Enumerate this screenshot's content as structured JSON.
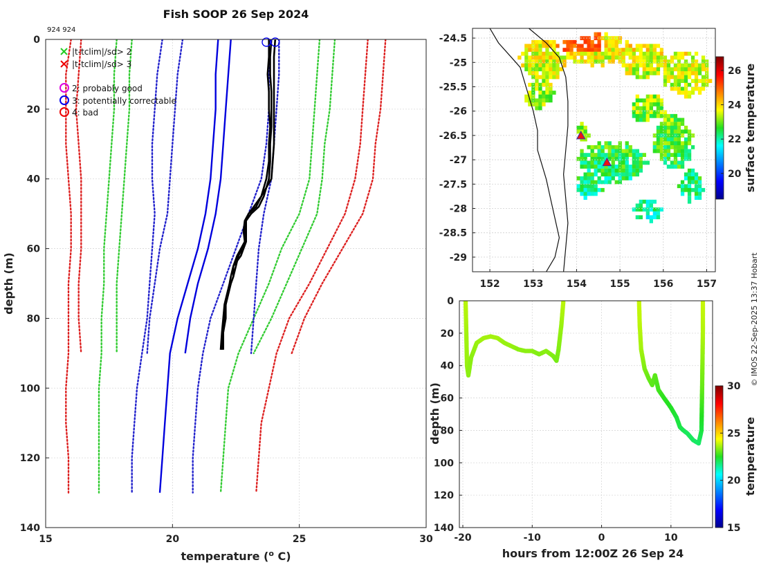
{
  "credit": "© IMOS 22-Sep-2025 13:37 Hobart",
  "chart_data": [
    {
      "id": "profile",
      "type": "line",
      "title": "Fish SOOP 26 Sep 2024",
      "subtitle": "924 924",
      "xlabel": "temperature (",
      "xlabel_sup": "o",
      "xlabel_end": " C)",
      "ylabel": "depth (m)",
      "xlim": [
        15,
        30
      ],
      "ylim": [
        0,
        140
      ],
      "xticks": [
        15,
        20,
        25,
        30
      ],
      "yticks": [
        0,
        20,
        40,
        60,
        80,
        100,
        120,
        140
      ],
      "legend": [
        {
          "marker": "x",
          "color": "#22cc22",
          "label": "|t-tclim|/sd> 2"
        },
        {
          "marker": "x",
          "color": "#ee0000",
          "label": "|t-tclim|/sd> 3"
        },
        {
          "marker": "o",
          "color": "#dd00dd",
          "label": "2: probably good"
        },
        {
          "marker": "o",
          "color": "#0000ee",
          "label": "3: potentially correctable"
        },
        {
          "marker": "o",
          "color": "#ee0000",
          "label": "4: bad"
        }
      ],
      "clim_depths": [
        0,
        10,
        20,
        30,
        40,
        50,
        60,
        70,
        80,
        90,
        100,
        110,
        120,
        130
      ],
      "climatology": [
        {
          "name": "clim-3sd-low",
          "color": "#dd2222",
          "dash": true,
          "depth_max": 130,
          "values": [
            16.0,
            15.8,
            15.8,
            15.8,
            15.9,
            16.0,
            16.0,
            15.9,
            15.9,
            15.9,
            15.8,
            15.8,
            15.9,
            15.9
          ]
        },
        {
          "name": "clim-2sd-low",
          "color": "#33cc33",
          "dash": true,
          "depth_max": 130,
          "values": [
            17.8,
            17.7,
            17.7,
            17.6,
            17.5,
            17.4,
            17.3,
            17.3,
            17.2,
            17.2,
            17.1,
            17.1,
            17.1,
            17.1
          ]
        },
        {
          "name": "clim-1sd-low",
          "color": "#2222cc",
          "dash": true,
          "depth_max": 130,
          "values": [
            19.6,
            19.4,
            19.3,
            19.2,
            19.2,
            19.3,
            19.2,
            19.1,
            19.0,
            18.8,
            18.6,
            18.5,
            18.4,
            18.4
          ]
        },
        {
          "name": "clim-mean",
          "color": "#0000dd",
          "dash": false,
          "depth_max": 130,
          "values": [
            21.8,
            21.7,
            21.7,
            21.6,
            21.5,
            21.3,
            21.0,
            20.6,
            20.2,
            19.9,
            19.8,
            19.7,
            19.6,
            19.5
          ]
        },
        {
          "name": "clim-1sd-high",
          "color": "#2222cc",
          "dash": true,
          "depth_max": 130,
          "values": [
            23.8,
            23.8,
            23.8,
            23.7,
            23.5,
            23.0,
            22.5,
            22.0,
            21.5,
            21.2,
            21.0,
            20.9,
            20.8,
            20.8
          ]
        },
        {
          "name": "clim-2sd-high",
          "color": "#33cc33",
          "dash": true,
          "depth_max": 130,
          "values": [
            25.8,
            25.7,
            25.6,
            25.5,
            25.4,
            25.0,
            24.3,
            23.8,
            23.2,
            22.6,
            22.2,
            22.1,
            22.0,
            21.9
          ]
        },
        {
          "name": "clim-3sd-high",
          "color": "#dd2222",
          "dash": true,
          "depth_max": 130,
          "values": [
            27.7,
            27.6,
            27.5,
            27.4,
            27.2,
            26.8,
            26.1,
            25.4,
            24.6,
            24.1,
            23.8,
            23.5,
            23.4,
            23.3
          ]
        }
      ],
      "clim_short_depths": [
        0,
        10,
        20,
        30,
        40,
        50,
        60,
        70,
        80,
        90
      ],
      "climatology_short": [
        {
          "name": "clim90-3sd-low",
          "color": "#dd2222",
          "dash": true,
          "values": [
            16.4,
            16.3,
            16.2,
            16.3,
            16.4,
            16.4,
            16.4,
            16.3,
            16.3,
            16.4
          ]
        },
        {
          "name": "clim90-2sd-low",
          "color": "#33cc33",
          "dash": true,
          "values": [
            18.4,
            18.3,
            18.3,
            18.2,
            18.1,
            18.0,
            17.9,
            17.8,
            17.8,
            17.8
          ]
        },
        {
          "name": "clim90-1sd-low",
          "color": "#2222cc",
          "dash": true,
          "values": [
            20.4,
            20.2,
            20.1,
            20.0,
            19.9,
            19.8,
            19.5,
            19.3,
            19.1,
            19.0
          ]
        },
        {
          "name": "clim90-mean",
          "color": "#0000dd",
          "dash": false,
          "values": [
            22.3,
            22.2,
            22.1,
            22.0,
            21.9,
            21.7,
            21.4,
            21.0,
            20.7,
            20.5
          ]
        },
        {
          "name": "clim90-1sd-high",
          "color": "#2222cc",
          "dash": true,
          "values": [
            24.2,
            24.2,
            24.1,
            24.0,
            23.9,
            23.6,
            23.4,
            23.3,
            23.2,
            23.1
          ]
        },
        {
          "name": "clim90-2sd-high",
          "color": "#33cc33",
          "dash": true,
          "values": [
            26.4,
            26.3,
            26.2,
            26.0,
            25.9,
            25.7,
            25.1,
            24.5,
            23.9,
            23.2
          ]
        },
        {
          "name": "clim90-3sd-high",
          "color": "#dd2222",
          "dash": true,
          "values": [
            28.4,
            28.3,
            28.2,
            28.0,
            27.9,
            27.5,
            26.7,
            25.9,
            25.2,
            24.7
          ]
        }
      ],
      "observed": {
        "depths": [
          0,
          5,
          10,
          15,
          20,
          25,
          30,
          35,
          40,
          45,
          48,
          50,
          52,
          55,
          58,
          60,
          62,
          65,
          68,
          70,
          73,
          76,
          80,
          84,
          89
        ],
        "profiles": [
          [
            23.9,
            23.85,
            23.85,
            23.9,
            23.9,
            23.9,
            23.85,
            23.85,
            23.8,
            23.6,
            23.4,
            23.1,
            22.9,
            22.9,
            22.9,
            22.8,
            22.7,
            22.4,
            22.4,
            22.3,
            22.2,
            22.1,
            22.1,
            22.0,
            22.0
          ],
          [
            24.05,
            24.0,
            24.0,
            24.0,
            24.0,
            24.0,
            24.0,
            23.95,
            23.9,
            23.5,
            23.2,
            23.0,
            22.9,
            22.85,
            22.85,
            22.75,
            22.6,
            22.5,
            22.4,
            22.3,
            22.2,
            22.1,
            22.05,
            22.0,
            21.95
          ],
          [
            23.8,
            23.8,
            23.75,
            23.8,
            23.8,
            23.85,
            23.8,
            23.8,
            23.7,
            23.5,
            23.3,
            23.0,
            22.85,
            22.8,
            22.85,
            22.7,
            22.55,
            22.4,
            22.3,
            22.25,
            22.15,
            22.05,
            22.0,
            21.95,
            21.9
          ]
        ],
        "flags_depth": [
          0,
          0
        ],
        "flags_temp": [
          23.7,
          24.05
        ]
      }
    },
    {
      "id": "sst-map",
      "type": "heatmap",
      "xlim": [
        151.6,
        157.2
      ],
      "ylim": [
        -29.3,
        -24.3
      ],
      "xticks": [
        152,
        153,
        154,
        155,
        156,
        157
      ],
      "yticks": [
        -24.5,
        -25,
        -25.5,
        -26,
        -26.5,
        -27,
        -27.5,
        -28,
        -28.5,
        -29
      ],
      "colorbar_label": "surface temperature",
      "clim": [
        18.5,
        26.8
      ],
      "colorbar_ticks": [
        20,
        22,
        24,
        26
      ],
      "markers": [
        {
          "lon": 154.1,
          "lat": -26.5
        },
        {
          "lon": 154.7,
          "lat": -27.05
        }
      ],
      "coast": [
        [
          152.0,
          -24.3
        ],
        [
          152.2,
          -24.6
        ],
        [
          152.5,
          -24.9
        ],
        [
          152.7,
          -25.1
        ],
        [
          152.8,
          -25.4
        ],
        [
          152.9,
          -25.7
        ],
        [
          153.0,
          -26.0
        ],
        [
          153.1,
          -26.4
        ],
        [
          153.1,
          -26.8
        ],
        [
          153.2,
          -27.1
        ],
        [
          153.3,
          -27.4
        ],
        [
          153.4,
          -27.8
        ],
        [
          153.5,
          -28.2
        ],
        [
          153.6,
          -28.6
        ],
        [
          153.5,
          -29.0
        ],
        [
          153.3,
          -29.3
        ]
      ],
      "shelf": [
        [
          152.9,
          -24.3
        ],
        [
          153.3,
          -24.6
        ],
        [
          153.6,
          -24.9
        ],
        [
          153.75,
          -25.3
        ],
        [
          153.8,
          -25.8
        ],
        [
          153.8,
          -26.3
        ],
        [
          153.75,
          -26.8
        ],
        [
          153.7,
          -27.3
        ],
        [
          153.75,
          -27.8
        ],
        [
          153.8,
          -28.3
        ],
        [
          153.75,
          -28.8
        ],
        [
          153.7,
          -29.3
        ]
      ]
    },
    {
      "id": "section",
      "type": "scatter",
      "xlabel": "hours from 12:00Z 26 Sep 24",
      "ylabel": "depth (m)",
      "xlim": [
        -20.5,
        16
      ],
      "ylim": [
        0,
        140
      ],
      "xticks": [
        -20,
        -10,
        0,
        10
      ],
      "yticks": [
        0,
        20,
        40,
        60,
        80,
        100,
        120,
        140
      ],
      "colorbar_label": "temperature",
      "clim": [
        15,
        30
      ],
      "colorbar_ticks": [
        15,
        20,
        25,
        30
      ],
      "segments": [
        {
          "name": "transect-1",
          "points": [
            [
              -19.6,
              0,
              23.8
            ],
            [
              -19.5,
              20,
              23.6
            ],
            [
              -19.4,
              40,
              23.5
            ],
            [
              -19.2,
              46,
              23.4
            ],
            [
              -18.8,
              35,
              23.4
            ],
            [
              -18,
              26,
              23.5
            ],
            [
              -17,
              23,
              23.6
            ],
            [
              -16,
              22,
              23.6
            ],
            [
              -15,
              23,
              23.6
            ],
            [
              -14,
              26,
              23.5
            ],
            [
              -13,
              28,
              23.5
            ],
            [
              -12,
              30,
              23.4
            ],
            [
              -11,
              31,
              23.4
            ],
            [
              -10,
              31,
              23.4
            ],
            [
              -9,
              33,
              23.3
            ],
            [
              -8,
              31,
              23.4
            ],
            [
              -7,
              34,
              23.3
            ],
            [
              -6.5,
              37,
              23.2
            ],
            [
              -6.2,
              30,
              23.3
            ],
            [
              -5.8,
              15,
              23.5
            ],
            [
              -5.5,
              0,
              23.8
            ]
          ]
        },
        {
          "name": "transect-2",
          "points": [
            [
              5.4,
              0,
              23.9
            ],
            [
              5.5,
              15,
              23.8
            ],
            [
              5.7,
              30,
              23.6
            ],
            [
              6.2,
              42,
              23.3
            ],
            [
              6.8,
              48,
              23.1
            ],
            [
              7.3,
              52,
              23.0
            ],
            [
              7.7,
              46,
              23.0
            ],
            [
              8.2,
              55,
              22.8
            ],
            [
              9.0,
              60,
              22.6
            ],
            [
              10.0,
              66,
              22.5
            ],
            [
              10.8,
              72,
              22.3
            ],
            [
              11.3,
              78,
              22.2
            ],
            [
              11.8,
              80,
              22.1
            ],
            [
              12.4,
              82,
              22.0
            ],
            [
              13.2,
              86,
              22.0
            ],
            [
              14.0,
              88,
              21.9
            ],
            [
              14.4,
              80,
              22.2
            ],
            [
              14.5,
              52,
              23.1
            ],
            [
              14.6,
              20,
              23.7
            ],
            [
              14.6,
              0,
              23.9
            ]
          ]
        }
      ]
    }
  ]
}
